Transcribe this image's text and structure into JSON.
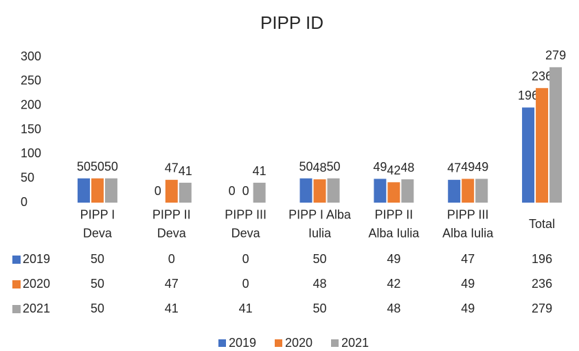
{
  "chart_data": {
    "type": "bar",
    "title": "PIPP ID",
    "categories": [
      "PIPP  I\nDeva",
      "PIPP  II\nDeva",
      "PIPP  III\nDeva",
      "PIPP I Alba\nIulia",
      "PIPP II\nAlba Iulia",
      "PIPP III\nAlba Iulia",
      "Total"
    ],
    "series": [
      {
        "name": "2019",
        "color": "#4472c4",
        "values": [
          50,
          0,
          0,
          50,
          49,
          47,
          196
        ]
      },
      {
        "name": "2020",
        "color": "#ed7d31",
        "values": [
          50,
          47,
          0,
          48,
          42,
          49,
          236
        ]
      },
      {
        "name": "2021",
        "color": "#a5a5a5",
        "values": [
          50,
          41,
          41,
          50,
          48,
          49,
          279
        ]
      }
    ],
    "ylim": [
      0,
      300
    ],
    "yticks": [
      0,
      50,
      100,
      150,
      200,
      250,
      300
    ],
    "grid": false,
    "legend": "bottom",
    "data_table": true
  }
}
